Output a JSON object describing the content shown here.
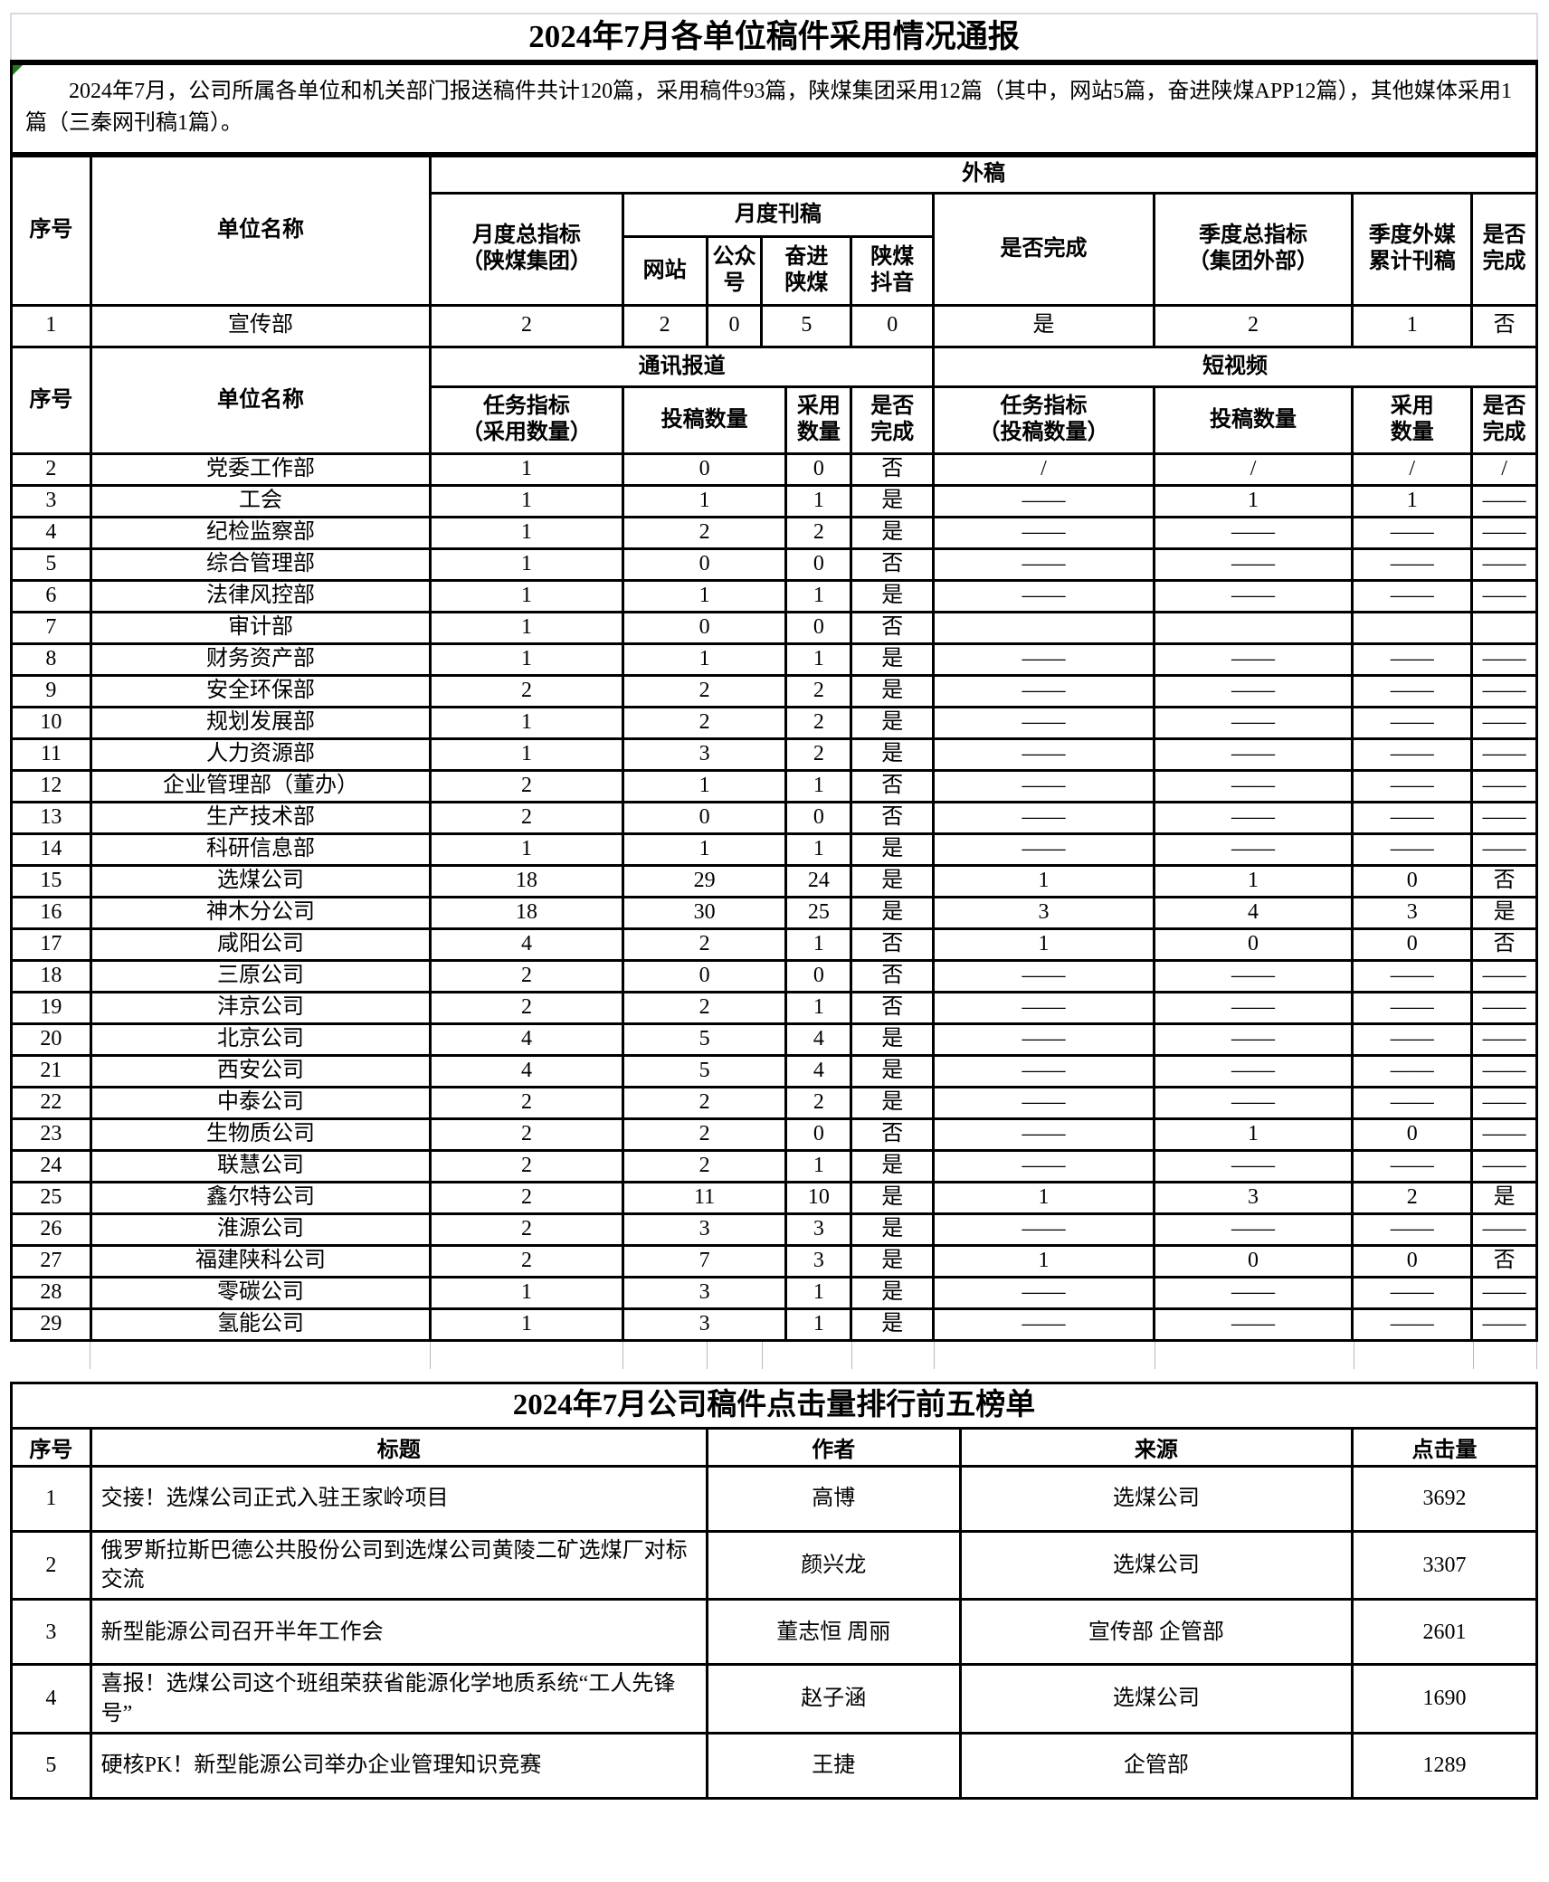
{
  "colors": {
    "border": "#000000",
    "light_border": "#d9d9e3",
    "ghost_line": "#b9b9b9",
    "error_marker_green": "#1e7c1e"
  },
  "report": {
    "title": "2024年7月各单位稿件采用情况通报",
    "intro": "2024年7月，公司所属各单位和机关部门报送稿件共计120篇，采用稿件93篇，陕煤集团采用12篇（其中，网站5篇，奋进陕煤APP12篇），其他媒体采用1篇（三秦网刊稿1篇）。",
    "header_a": {
      "xuhao": "序号",
      "unit_name": "单位名称",
      "waigao": "外稿",
      "monthly_total": "月度总指标\n（陕煤集团）",
      "monthly_pub": "月度刊稿",
      "website": "网站",
      "gongzhonghao": "公众\n号",
      "fenjin_shanmei": "奋进\n陕煤",
      "shanmei_douyin": "陕煤\n抖音",
      "complete": "是否完成",
      "quarter_total": "季度总指标\n（集团外部）",
      "quarter_media": "季度外媒\n累计刊稿",
      "complete2": "是否\n完成"
    },
    "row_1": [
      [
        "1",
        "宣传部",
        "2",
        "2",
        "0",
        "5",
        "0",
        "是",
        "2",
        "1",
        "否"
      ]
    ],
    "header_b": {
      "xuhao": "序号",
      "unit_name": "单位名称",
      "news_report": "通讯报道",
      "short_video": "短视频",
      "task_adopt": "任务指标\n（采用数量）",
      "submit_count": "投稿数量",
      "adopt_count": "采用\n数量",
      "complete": "是否\n完成",
      "task_submit": "任务指标\n（投稿数量）",
      "submit_count2": "投稿数量",
      "adopt_count2": "采用\n数量",
      "complete2": "是否\n完成"
    },
    "rows": [
      [
        "2",
        "党委工作部",
        "1",
        "0",
        "0",
        "否",
        "/",
        "/",
        "/",
        "/"
      ],
      [
        "3",
        "工会",
        "1",
        "1",
        "1",
        "是",
        "——",
        "1",
        "1",
        "——"
      ],
      [
        "4",
        "纪检监察部",
        "1",
        "2",
        "2",
        "是",
        "——",
        "——",
        "——",
        "——"
      ],
      [
        "5",
        "综合管理部",
        "1",
        "0",
        "0",
        "否",
        "——",
        "——",
        "——",
        "——"
      ],
      [
        "6",
        "法律风控部",
        "1",
        "1",
        "1",
        "是",
        "——",
        "——",
        "——",
        "——"
      ],
      [
        "7",
        "审计部",
        "1",
        "0",
        "0",
        "否",
        "",
        "",
        "",
        ""
      ],
      [
        "8",
        "财务资产部",
        "1",
        "1",
        "1",
        "是",
        "——",
        "——",
        "——",
        "——"
      ],
      [
        "9",
        "安全环保部",
        "2",
        "2",
        "2",
        "是",
        "——",
        "——",
        "——",
        "——"
      ],
      [
        "10",
        "规划发展部",
        "1",
        "2",
        "2",
        "是",
        "——",
        "——",
        "——",
        "——"
      ],
      [
        "11",
        "人力资源部",
        "1",
        "3",
        "2",
        "是",
        "——",
        "——",
        "——",
        "——"
      ],
      [
        "12",
        "企业管理部（董办）",
        "2",
        "1",
        "1",
        "否",
        "——",
        "——",
        "——",
        "——"
      ],
      [
        "13",
        "生产技术部",
        "2",
        "0",
        "0",
        "否",
        "——",
        "——",
        "——",
        "——"
      ],
      [
        "14",
        "科研信息部",
        "1",
        "1",
        "1",
        "是",
        "——",
        "——",
        "——",
        "——"
      ],
      [
        "15",
        "选煤公司",
        "18",
        "29",
        "24",
        "是",
        "1",
        "1",
        "0",
        "否"
      ],
      [
        "16",
        "神木分公司",
        "18",
        "30",
        "25",
        "是",
        "3",
        "4",
        "3",
        "是"
      ],
      [
        "17",
        "咸阳公司",
        "4",
        "2",
        "1",
        "否",
        "1",
        "0",
        "0",
        "否"
      ],
      [
        "18",
        "三原公司",
        "2",
        "0",
        "0",
        "否",
        "——",
        "——",
        "——",
        "——"
      ],
      [
        "19",
        "沣京公司",
        "2",
        "2",
        "1",
        "否",
        "——",
        "——",
        "——",
        "——"
      ],
      [
        "20",
        "北京公司",
        "4",
        "5",
        "4",
        "是",
        "——",
        "——",
        "——",
        "——"
      ],
      [
        "21",
        "西安公司",
        "4",
        "5",
        "4",
        "是",
        "——",
        "——",
        "——",
        "——"
      ],
      [
        "22",
        "中泰公司",
        "2",
        "2",
        "2",
        "是",
        "——",
        "——",
        "——",
        "——"
      ],
      [
        "23",
        "生物质公司",
        "2",
        "2",
        "0",
        "否",
        "——",
        "1",
        "0",
        "——"
      ],
      [
        "24",
        "联慧公司",
        "2",
        "2",
        "1",
        "是",
        "——",
        "——",
        "——",
        "——"
      ],
      [
        "25",
        "鑫尔特公司",
        "2",
        "11",
        "10",
        "是",
        "1",
        "3",
        "2",
        "是"
      ],
      [
        "26",
        "淮源公司",
        "2",
        "3",
        "3",
        "是",
        "——",
        "——",
        "——",
        "——"
      ],
      [
        "27",
        "福建陕科公司",
        "2",
        "7",
        "3",
        "是",
        "1",
        "0",
        "0",
        "否"
      ],
      [
        "28",
        "零碳公司",
        "1",
        "3",
        "1",
        "是",
        "——",
        "——",
        "——",
        "——"
      ],
      [
        "29",
        "氢能公司",
        "1",
        "3",
        "1",
        "是",
        "——",
        "——",
        "——",
        "——"
      ]
    ]
  },
  "ranking": {
    "title": "2024年7月公司稿件点击量排行前五榜单",
    "headers": {
      "xuhao": "序号",
      "biaoti": "标题",
      "zuozhe": "作者",
      "laiyuan": "来源",
      "dianjiliang": "点击量"
    },
    "rows": [
      [
        "1",
        "交接！选煤公司正式入驻王家岭项目",
        "高博",
        "选煤公司",
        "3692"
      ],
      [
        "2",
        "俄罗斯拉斯巴德公共股份公司到选煤公司黄陵二矿选煤厂对标交流",
        "颜兴龙",
        "选煤公司",
        "3307"
      ],
      [
        "3",
        "新型能源公司召开半年工作会",
        "董志恒 周丽",
        "宣传部 企管部",
        "2601"
      ],
      [
        "4",
        "喜报！选煤公司这个班组荣获省能源化学地质系统“工人先锋号”",
        "赵子涵",
        "选煤公司",
        "1690"
      ],
      [
        "5",
        "硬核PK！新型能源公司举办企业管理知识竞赛",
        "王捷",
        "企管部",
        "1289"
      ]
    ]
  }
}
